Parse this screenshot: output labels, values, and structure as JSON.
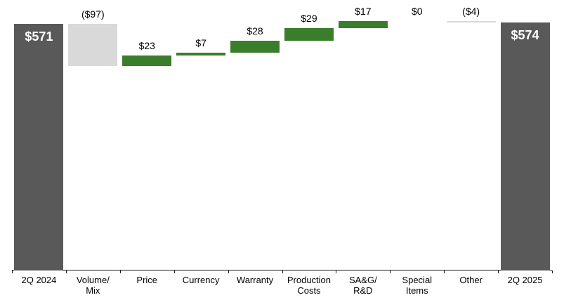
{
  "chart_data": {
    "type": "bar",
    "subtype": "waterfall",
    "title": "",
    "categories": [
      "2Q 2024",
      "Volume/\nMix",
      "Price",
      "Currency",
      "Warranty",
      "Production\nCosts",
      "SA&G/\nR&D",
      "Special\nItems",
      "Other",
      "2Q 2025"
    ],
    "values": [
      571,
      -97,
      23,
      7,
      28,
      29,
      17,
      0,
      -4,
      574
    ],
    "bar_roles": [
      "total",
      "delta",
      "delta",
      "delta",
      "delta",
      "delta",
      "delta",
      "delta",
      "delta",
      "total"
    ],
    "value_labels": [
      "$571",
      "($97)",
      "$23",
      "$7",
      "$28",
      "$29",
      "$17",
      "$0",
      "($4)",
      "$574"
    ],
    "start_level": 0,
    "end_level": 574,
    "axis": {
      "ylim": [
        0,
        630
      ],
      "grid": false,
      "legend": false,
      "x_tick_marks": true
    }
  },
  "colors": {
    "total_bar": "#595959",
    "increase_bar": "#3a7d2b",
    "decrease_bar": "#d9d9d9",
    "axis": "#1a1a1a",
    "value_label_text": "#000000",
    "total_label_text": "#ffffff",
    "background": "#ffffff"
  }
}
